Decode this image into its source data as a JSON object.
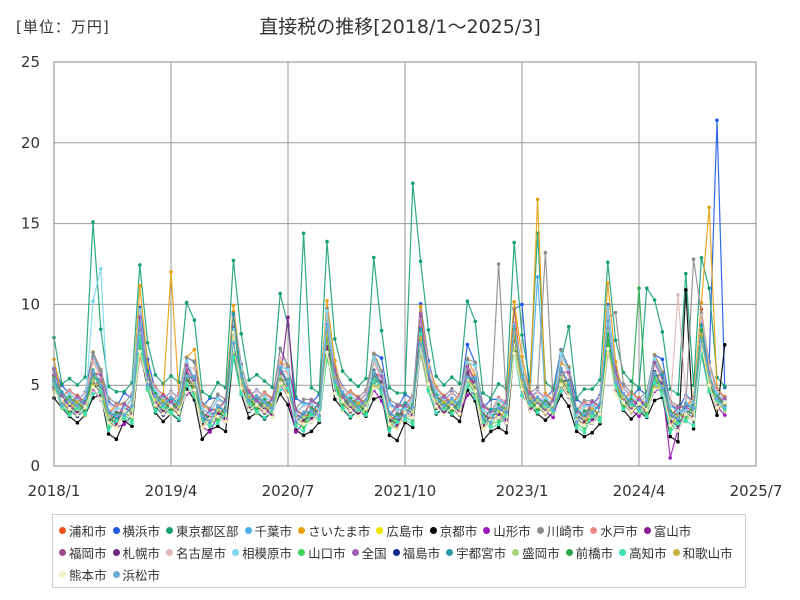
{
  "unit_label": "[単位：万円]",
  "title": "直接税の推移[2018/1～2025/3]",
  "chart_data": {
    "type": "line",
    "title": "直接税の推移[2018/1～2025/3]",
    "ylabel": "",
    "xlabel": "",
    "ylim": [
      0,
      25
    ],
    "yticks": [
      0,
      5,
      10,
      15,
      20,
      25
    ],
    "xlim": [
      2018.0,
      2025.5
    ],
    "xticks": [
      {
        "value": 2018.0,
        "label": "2018/1"
      },
      {
        "value": 2019.25,
        "label": "2019/4"
      },
      {
        "value": 2020.5,
        "label": "2020/7"
      },
      {
        "value": 2021.75,
        "label": "2021/10"
      },
      {
        "value": 2023.0,
        "label": "2023/1"
      },
      {
        "value": 2024.25,
        "label": "2024/4"
      },
      {
        "value": 2025.5,
        "label": "2025/7"
      }
    ],
    "grid": true,
    "legend_position": "bottom",
    "x_start": "2018/1",
    "x_end": "2025/3",
    "series": [
      {
        "name": "浦和市",
        "color": "#f0521e",
        "base": 4.2,
        "summer": 4.5,
        "winter": 2.0,
        "dip": 1.0
      },
      {
        "name": "横浜市",
        "color": "#1e5ae6",
        "base": 4.6,
        "summer": 4.8,
        "winter": 2.8,
        "dip": 0.8,
        "extra": [
          {
            "i": 85,
            "v": 21.4
          },
          {
            "i": 60,
            "v": 10.0
          }
        ]
      },
      {
        "name": "東京都区部",
        "color": "#16a075",
        "base": 5.4,
        "summer": 7.5,
        "winter": 5.5,
        "dip": 0.8,
        "extra": [
          {
            "i": 5,
            "v": 15.1
          },
          {
            "i": 32,
            "v": 14.4
          },
          {
            "i": 41,
            "v": 12.9
          },
          {
            "i": 46,
            "v": 17.5
          },
          {
            "i": 53,
            "v": 10.2
          },
          {
            "i": 62,
            "v": 14.4
          },
          {
            "i": 65,
            "v": 6.5
          },
          {
            "i": 76,
            "v": 11.0
          },
          {
            "i": 81,
            "v": 11.9
          },
          {
            "i": 84,
            "v": 11.0
          }
        ]
      },
      {
        "name": "千葉市",
        "color": "#4aaee8",
        "base": 4.3,
        "summer": 4.2,
        "winter": 2.5,
        "dip": 0.9,
        "extra": [
          {
            "i": 62,
            "v": 11.7
          }
        ]
      },
      {
        "name": "さいたま市",
        "color": "#e6a010",
        "base": 4.4,
        "summer": 5.6,
        "winter": 2.5,
        "dip": 0.9,
        "extra": [
          {
            "i": 62,
            "v": 16.5
          },
          {
            "i": 84,
            "v": 16.0
          },
          {
            "i": 15,
            "v": 12.0
          },
          {
            "i": 18,
            "v": 7.2
          }
        ]
      },
      {
        "name": "広島市",
        "color": "#f2e400",
        "base": 3.9,
        "summer": 3.5,
        "winter": 1.4,
        "dip": 1.1
      },
      {
        "name": "京都市",
        "color": "#000000",
        "base": 3.3,
        "summer": 3.5,
        "winter": 1.2,
        "dip": 1.4,
        "extra": [
          {
            "i": 81,
            "v": 10.9
          },
          {
            "i": 86,
            "v": 7.5
          }
        ]
      },
      {
        "name": "山形市",
        "color": "#9a18b8",
        "base": 3.7,
        "summer": 3.8,
        "winter": 1.2,
        "dip": 1.2,
        "extra": [
          {
            "i": 79,
            "v": 0.5
          }
        ]
      },
      {
        "name": "川崎市",
        "color": "#8c8c8c",
        "base": 4.6,
        "summer": 4.0,
        "winter": 2.5,
        "dip": 0.8,
        "extra": [
          {
            "i": 57,
            "v": 12.5
          },
          {
            "i": 63,
            "v": 13.2
          },
          {
            "i": 82,
            "v": 12.8
          },
          {
            "i": 72,
            "v": 9.5
          }
        ]
      },
      {
        "name": "水戸市",
        "color": "#ec8a8a",
        "base": 4.4,
        "summer": 4.0,
        "winter": 2.0,
        "dip": 0.9
      },
      {
        "name": "富山市",
        "color": "#8a1a90",
        "base": 3.9,
        "summer": 4.0,
        "winter": 1.8,
        "dip": 1.0,
        "extra": [
          {
            "i": 30,
            "v": 9.2
          }
        ]
      },
      {
        "name": "福岡市",
        "color": "#9e4e8c",
        "base": 4.0,
        "summer": 3.8,
        "winter": 1.8,
        "dip": 1.0
      },
      {
        "name": "札幌市",
        "color": "#6e2a7a",
        "base": 3.9,
        "summer": 3.6,
        "winter": 1.6,
        "dip": 1.1
      },
      {
        "name": "名古屋市",
        "color": "#e0b8b8",
        "base": 4.4,
        "summer": 4.2,
        "winter": 2.2,
        "dip": 0.9,
        "extra": [
          {
            "i": 80,
            "v": 10.6
          }
        ]
      },
      {
        "name": "相模原市",
        "color": "#7fd8ee",
        "base": 4.3,
        "summer": 4.3,
        "winter": 2.5,
        "dip": 0.9,
        "extra": [
          {
            "i": 6,
            "v": 12.2
          },
          {
            "i": 5,
            "v": 10.2
          }
        ]
      },
      {
        "name": "山口市",
        "color": "#3cd45a",
        "base": 3.8,
        "summer": 3.4,
        "winter": 1.6,
        "dip": 1.1
      },
      {
        "name": "全国",
        "color": "#a060b0",
        "base": 4.2,
        "summer": 3.9,
        "winter": 2.0,
        "dip": 0.9
      },
      {
        "name": "福島市",
        "color": "#102a8c",
        "base": 3.7,
        "summer": 3.6,
        "winter": 1.5,
        "dip": 1.1
      },
      {
        "name": "宇都宮市",
        "color": "#2a9aa8",
        "base": 4.1,
        "summer": 3.9,
        "winter": 1.9,
        "dip": 1.0
      },
      {
        "name": "盛岡市",
        "color": "#a8d480",
        "base": 3.8,
        "summer": 3.4,
        "winter": 1.5,
        "dip": 1.1
      },
      {
        "name": "前橋市",
        "color": "#2aa84a",
        "base": 4.0,
        "summer": 3.7,
        "winter": 1.8,
        "dip": 1.0,
        "extra": [
          {
            "i": 75,
            "v": 11.0
          }
        ]
      },
      {
        "name": "高知市",
        "color": "#3ae0b4",
        "base": 3.6,
        "summer": 3.3,
        "winter": 1.4,
        "dip": 1.2
      },
      {
        "name": "和歌山市",
        "color": "#c8b440",
        "base": 3.8,
        "summer": 3.6,
        "winter": 1.6,
        "dip": 1.1
      },
      {
        "name": "熊本市",
        "color": "#f4f0c8",
        "base": 3.7,
        "summer": 3.2,
        "winter": 1.4,
        "dip": 1.2
      },
      {
        "name": "浜松市",
        "color": "#6aa8d8",
        "base": 4.1,
        "summer": 3.8,
        "winter": 1.9,
        "dip": 1.0
      }
    ]
  }
}
